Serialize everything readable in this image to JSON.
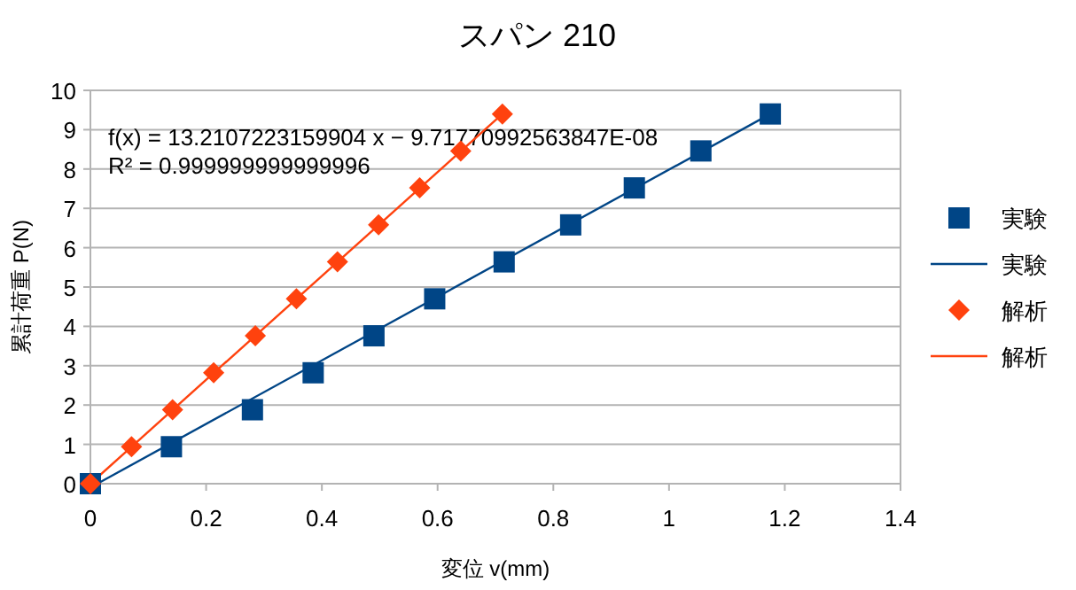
{
  "chart_data": {
    "type": "scatter",
    "title": "スパン 210",
    "xlabel": "変位 v(mm)",
    "ylabel": "累計荷重 P(N)",
    "annotations": [
      "f(x) = 13.2107223159904 x − 9.71770992563847E-08",
      "R² = 0.999999999999996"
    ],
    "xlim": [
      0,
      1.4
    ],
    "ylim": [
      0,
      10
    ],
    "xticks": [
      0,
      0.2,
      0.4,
      0.6,
      0.8,
      1,
      1.2,
      1.4
    ],
    "yticks": [
      0,
      1,
      2,
      3,
      4,
      5,
      6,
      7,
      8,
      9,
      10
    ],
    "grid": "y",
    "legend": "right",
    "series": [
      {
        "name": "実験",
        "marker": "square",
        "color": "#004586",
        "x": [
          0,
          0.14,
          0.28,
          0.385,
          0.49,
          0.595,
          0.715,
          0.83,
          0.94,
          1.055,
          1.175
        ],
        "values": [
          0,
          0.94,
          1.88,
          2.82,
          3.76,
          4.7,
          5.64,
          6.58,
          7.52,
          8.46,
          9.4
        ]
      },
      {
        "name": "実験",
        "type": "line",
        "marker": "none",
        "color": "#004586",
        "x": [
          0.012,
          1.175
        ],
        "values": [
          0,
          9.4
        ]
      },
      {
        "name": "解析",
        "marker": "diamond",
        "color": "#ff420e",
        "x": [
          0,
          0.071,
          0.142,
          0.213,
          0.285,
          0.356,
          0.427,
          0.498,
          0.569,
          0.64,
          0.712
        ],
        "values": [
          0,
          0.94,
          1.88,
          2.82,
          3.76,
          4.7,
          5.64,
          6.58,
          7.52,
          8.46,
          9.4
        ]
      },
      {
        "name": "解析",
        "type": "line",
        "marker": "none",
        "color": "#ff420e",
        "x": [
          0,
          0.712
        ],
        "values": [
          0,
          9.4
        ]
      }
    ]
  }
}
